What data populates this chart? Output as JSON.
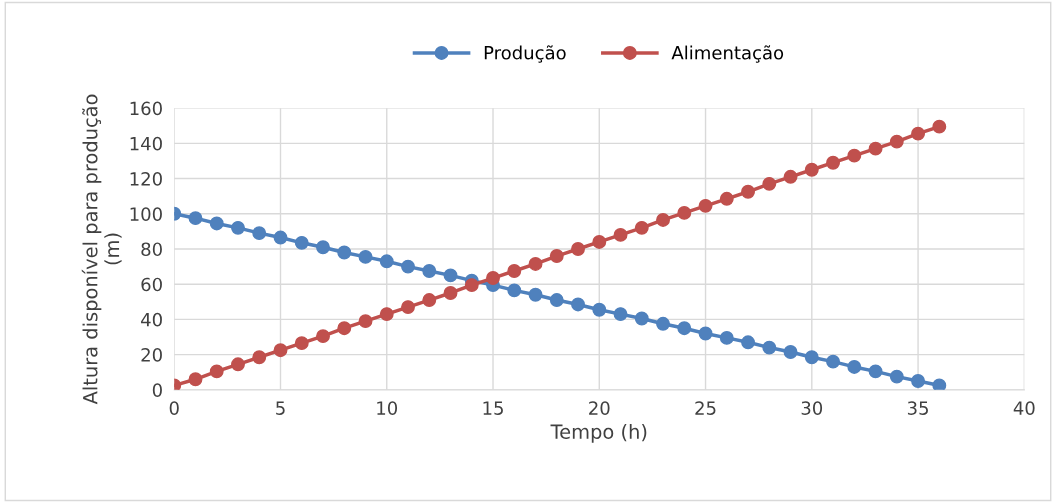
{
  "chart_data": {
    "type": "line",
    "xlabel": "Tempo (h)",
    "ylabel": "Altura disponível para produção\n(m)",
    "x": [
      0,
      1,
      2,
      3,
      4,
      5,
      6,
      7,
      8,
      9,
      10,
      11,
      12,
      13,
      14,
      15,
      16,
      17,
      18,
      19,
      20,
      21,
      22,
      23,
      24,
      25,
      26,
      27,
      28,
      29,
      30,
      31,
      32,
      33,
      34,
      35,
      36
    ],
    "series": [
      {
        "name": "Produção",
        "color": "#4f81bd",
        "values": [
          100,
          97.5,
          94.5,
          92,
          89,
          86.5,
          83.5,
          81,
          78,
          75.5,
          73,
          70,
          67.5,
          65,
          62,
          59.5,
          56.5,
          54,
          51,
          48.5,
          45.5,
          43,
          40.5,
          37.5,
          35,
          32,
          29.5,
          27,
          24,
          21.5,
          18.5,
          16,
          13,
          10.5,
          7.5,
          5,
          2.5
        ]
      },
      {
        "name": "Alimentação",
        "color": "#c0504d",
        "values": [
          2.5,
          6,
          10.5,
          14.5,
          18.5,
          22.5,
          26.5,
          30.5,
          35,
          39,
          43,
          47,
          51,
          55,
          59.5,
          63.5,
          67.5,
          71.5,
          76,
          80,
          84,
          88,
          92,
          96.5,
          100.5,
          104.5,
          108.5,
          112.5,
          117,
          121,
          125,
          129,
          133,
          137,
          141,
          145.5,
          149.5
        ]
      }
    ],
    "xlim": [
      0,
      40
    ],
    "xticks": [
      0,
      5,
      10,
      15,
      20,
      25,
      30,
      35,
      40
    ],
    "ylim": [
      0,
      160
    ],
    "yticks": [
      0,
      20,
      40,
      60,
      80,
      100,
      120,
      140,
      160
    ],
    "grid": true,
    "legend": "top",
    "marker": "circle",
    "line_style": "solid"
  }
}
